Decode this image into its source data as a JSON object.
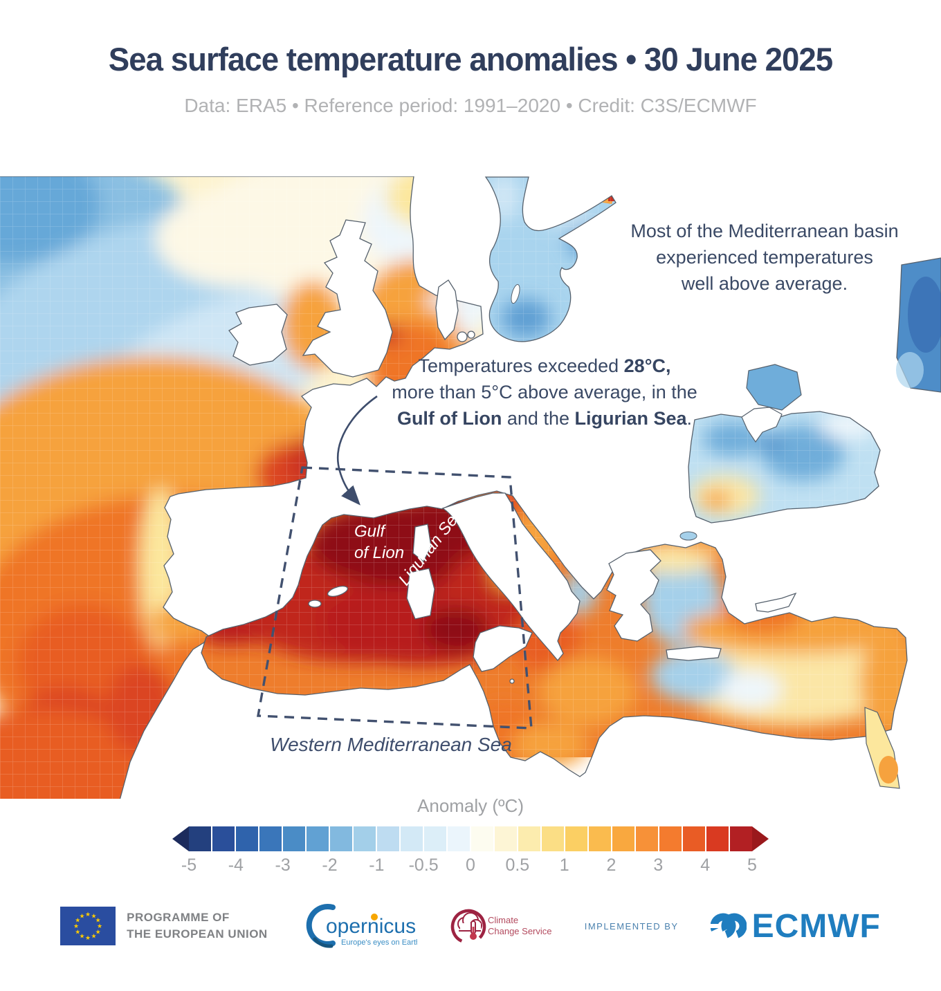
{
  "header": {
    "title": "Sea surface temperature anomalies • 30 June 2025",
    "subtitle": "Data: ERA5 • Reference period: 1991–2020 • Credit: C3S/ECMWF"
  },
  "annotations": {
    "basin": {
      "line1": "Most of the Mediterranean basin",
      "line2": "experienced temperatures",
      "line3": "well above average."
    },
    "callout": {
      "line1_normal": "Temperatures exceeded ",
      "line1_bold": "28°C,",
      "line2": "more than 5°C above average, in the",
      "line3_bold1": "Gulf of Lion",
      "line3_mid": " and the ",
      "line3_bold2": "Ligurian Sea",
      "line3_end": "."
    }
  },
  "map_labels": {
    "gulf_lion_line1": "Gulf",
    "gulf_lion_line2": "of Lion",
    "ligurian_sea": "Ligurian Sea",
    "western_med": "Western Mediterranean Sea"
  },
  "legend": {
    "title": "Anomaly (ºC)",
    "ticks": [
      "-5",
      "-4",
      "-3",
      "-2",
      "-1",
      "-0.5",
      "0",
      "0.5",
      "1",
      "2",
      "3",
      "4",
      "5"
    ],
    "cells": [
      "#23407e",
      "#2a4f9a",
      "#2f63ac",
      "#3a76ba",
      "#4a8cc6",
      "#61a1d3",
      "#82b9df",
      "#a3cfe9",
      "#bedcf1",
      "#d3e9f6",
      "#dceef8",
      "#ebf5fc",
      "#fdfcf0",
      "#fdf5d5",
      "#fcecae",
      "#fbde85",
      "#fbcf63",
      "#fabb4e",
      "#f9a83f",
      "#f79138",
      "#f47b2e",
      "#e95c25",
      "#d93a21",
      "#b22023"
    ],
    "left_arrow": "#1c2b5c",
    "right_arrow": "#9a191c"
  },
  "footer": {
    "eu_label_1": "PROGRAMME OF",
    "eu_label_2": "THE EUROPEAN UNION",
    "copernicus_text": "opernicus",
    "copernicus_tagline": "Europe's eyes on Earth",
    "c3s_line1": "Climate",
    "c3s_line2": "Change Service",
    "implemented_by": "IMPLEMENTED BY",
    "ecmwf_text": "ECMWF"
  },
  "colors": {
    "title_navy": "#303e5c",
    "subtitle_gray": "#b1b2b4",
    "annotation_navy": "#3a4965",
    "map_label_navy": "#3e4d6c",
    "dashed_box_navy": "#42516f",
    "tick_gray": "#9fa1a4",
    "eu_flag_blue": "#2a4da0",
    "eu_star_yellow": "#ffcc00",
    "copernicus_blue": "#1d6fae",
    "copernicus_orange": "#f7a600",
    "c3s_maroon": "#9d2342",
    "ecmwf_blue": "#1f7dbf"
  },
  "palette": {
    "coast": "#55606c",
    "atl_base": "#fdf3cf",
    "cool_deep": "#66a8d8",
    "cool": "#8abfe2",
    "cool_light": "#aed5ee",
    "cool_pale": "#cfe6f5",
    "near_white": "#eef6fb",
    "pale_warm": "#fdf8e6",
    "warm_light": "#fce79d",
    "warm": "#f6a23e",
    "orange": "#ef7526",
    "orange_deep": "#e85d24",
    "red": "#db4523",
    "red_deep": "#c93122",
    "crimson": "#c0281e",
    "crimson2": "#b71f1c",
    "maroon": "#8e1117",
    "med_base": "#ee7d2c",
    "aegean": "#a5d0ea",
    "cream": "#fbe6a6",
    "baltic": "#a9d4ee",
    "baltic_deep": "#5f9fd3",
    "blacksea": "#bfe0f2",
    "azov": "#6fadda",
    "caspian": "#4e8dc8",
    "deep_blue": "#2f63ac"
  }
}
